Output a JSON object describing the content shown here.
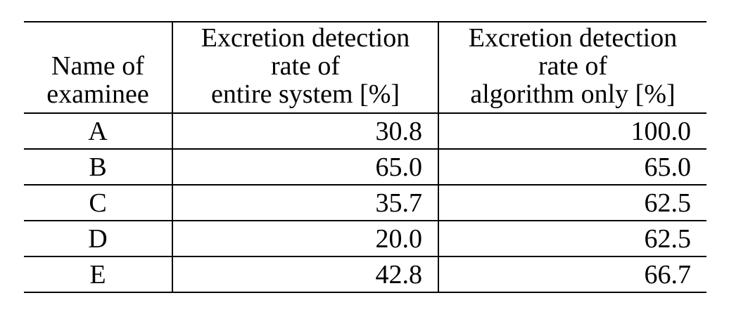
{
  "table": {
    "headers": [
      {
        "lines": [
          "Name of",
          "examinee"
        ]
      },
      {
        "lines": [
          "Excretion detection",
          "rate of",
          "entire system [%]"
        ]
      },
      {
        "lines": [
          "Excretion detection",
          "rate of",
          "algorithm only [%]"
        ]
      }
    ],
    "rows": [
      {
        "name": "A",
        "system": "30.8",
        "algorithm": "100.0"
      },
      {
        "name": "B",
        "system": "65.0",
        "algorithm": "65.0"
      },
      {
        "name": "C",
        "system": "35.7",
        "algorithm": "62.5"
      },
      {
        "name": "D",
        "system": "20.0",
        "algorithm": "62.5"
      },
      {
        "name": "E",
        "system": "42.8",
        "algorithm": "66.7"
      }
    ]
  }
}
